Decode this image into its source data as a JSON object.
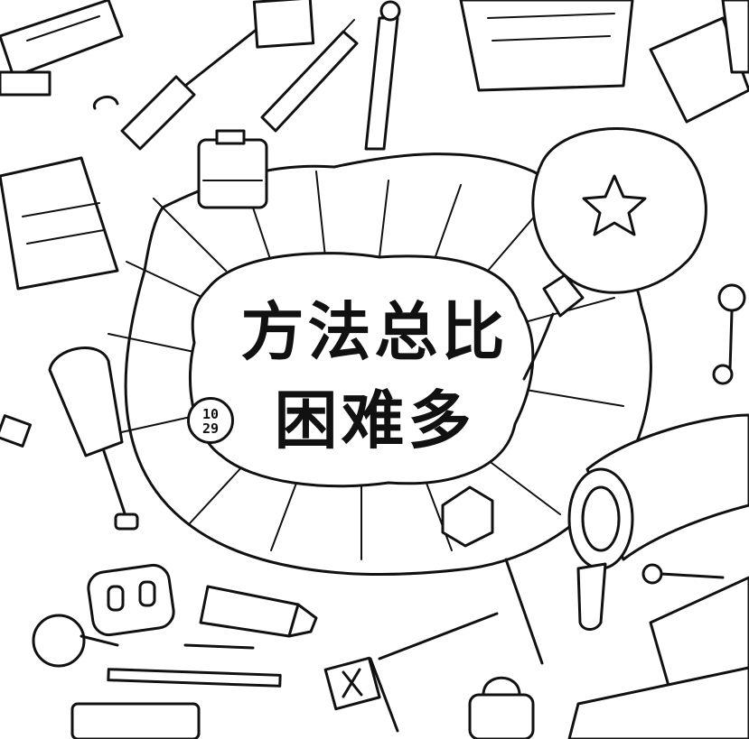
{
  "headline": {
    "line1": "方法总比",
    "line2": "困难多"
  },
  "date_badge": {
    "month": "10",
    "day": "29"
  },
  "colors": {
    "ink": "#111111",
    "paper": "#ffffff"
  }
}
